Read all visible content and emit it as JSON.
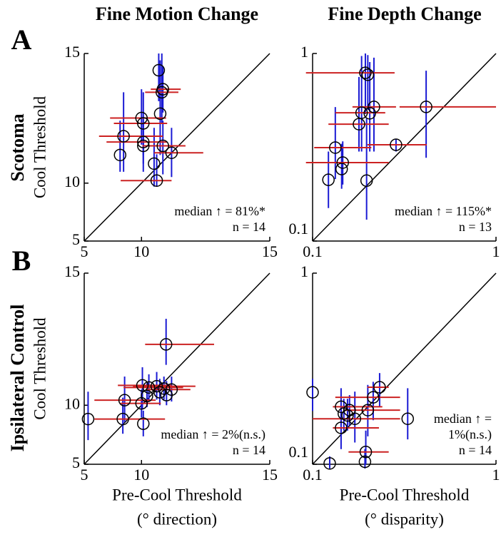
{
  "column_titles": [
    "Fine Motion Change",
    "Fine Depth Change"
  ],
  "row_letters": [
    "A",
    "B"
  ],
  "row_titles": [
    "Scotoma",
    "Ipsilateral Control"
  ],
  "chart_data": [
    {
      "type": "scatter",
      "ylabel": "Cool Threshold",
      "xlim": [
        5,
        15
      ],
      "ylim": [
        5,
        15
      ],
      "xticks": [
        5,
        10,
        15
      ],
      "yticks": [
        5,
        10,
        15
      ],
      "annotations": [
        "median ↑ = 81%*",
        "n = 14"
      ],
      "point_color": "#000000",
      "x_err_color": "#cc2222",
      "y_err_color": "#1a1ad4",
      "unity_color": "#000000",
      "x": [
        10.9,
        11.05,
        11.1,
        10.97,
        10.0,
        10.1,
        8.9,
        10.1,
        10.1,
        11.1,
        8.66,
        11.5,
        10.67,
        10.8
      ],
      "y": [
        14.5,
        13.8,
        13.9,
        13.06,
        12.9,
        12.7,
        12.2,
        11.96,
        11.8,
        11.8,
        11.4,
        11.5,
        11.0,
        10.14
      ],
      "x_low": [
        null,
        10.2,
        10.5,
        null,
        7.9,
        8.2,
        6.9,
        7.6,
        null,
        10.05,
        null,
        10.67,
        null,
        8.7
      ],
      "x_high": [
        null,
        11.8,
        11.9,
        null,
        11.25,
        11.3,
        11.1,
        11.3,
        null,
        12.1,
        null,
        12.8,
        null,
        11.5
      ],
      "y_low": [
        13.5,
        12.7,
        13.1,
        11.4,
        11.85,
        11.4,
        10.6,
        11.0,
        10.6,
        10.47,
        10.6,
        10.33,
        9.8,
        9.8
      ],
      "y_high": [
        15,
        15,
        14.6,
        14.8,
        13.9,
        13.8,
        13.8,
        12.67,
        12.95,
        12.8,
        12.8,
        12.53,
        12.53,
        11.43
      ]
    },
    {
      "type": "scatter",
      "xscale": "log",
      "yscale": "log",
      "xlim": [
        0.1,
        1
      ],
      "ylim": [
        0.1,
        1
      ],
      "xticks": [
        0.1,
        1
      ],
      "yticks": [
        0.1,
        1
      ],
      "annotations": [
        "median ↑ = 115%*",
        "n = 13"
      ],
      "point_color": "#000000",
      "x_err_color": "#cc2222",
      "y_err_color": "#1a1ad4",
      "unity_color": "#000000",
      "x": [
        0.194,
        0.2,
        0.216,
        0.416,
        0.185,
        0.179,
        0.133,
        0.285,
        0.146,
        0.144,
        0.122,
        0.197,
        0.205
      ],
      "y": [
        0.789,
        0.77,
        0.519,
        0.519,
        0.483,
        0.42,
        0.315,
        0.326,
        0.262,
        0.242,
        0.212,
        0.21,
        0.48
      ],
      "x_low": [
        0.092,
        null,
        0.165,
        0.298,
        0.133,
        0.122,
        0.102,
        0.199,
        0.092,
        null,
        null,
        null,
        null
      ],
      "x_high": [
        0.28,
        null,
        0.285,
        1.0,
        0.249,
        0.26,
        0.209,
        0.419,
        0.26,
        null,
        null,
        null,
        null
      ],
      "y_low": [
        0.475,
        0.5,
        0.3,
        0.278,
        0.3,
        0.3,
        0.214,
        0.3,
        0.2,
        0.19,
        0.15,
        0.13,
        0.3
      ],
      "y_high": [
        1,
        0.98,
        0.95,
        0.81,
        0.97,
        0.75,
        0.518,
        0.35,
        0.34,
        0.33,
        0.3,
        0.45,
        0.9
      ]
    },
    {
      "type": "scatter",
      "ylabel": "Cool Threshold",
      "xlabel": [
        "Pre-Cool Threshold",
        "(° direction)"
      ],
      "xlim": [
        5,
        15
      ],
      "ylim": [
        5,
        15
      ],
      "xticks": [
        5,
        10,
        15
      ],
      "yticks": [
        5,
        10,
        15
      ],
      "annotations": [
        "median ↑ = 2%(n.s.)",
        "n = 14"
      ],
      "point_color": "#000000",
      "x_err_color": "#cc2222",
      "y_err_color": "#1a1ad4",
      "unity_color": "#000000",
      "x": [
        11.25,
        10.05,
        10.8,
        10.4,
        11.5,
        11.15,
        10.95,
        11.27,
        10.3,
        10.0,
        8.97,
        5.6,
        8.85,
        10.1
      ],
      "y": [
        12.7,
        11.0,
        10.96,
        10.9,
        10.8,
        10.85,
        10.67,
        10.53,
        10.48,
        10.1,
        10.27,
        9.2,
        9.2,
        8.9
      ],
      "x_low": [
        10.2,
        8.5,
        9.5,
        8.9,
        10.3,
        null,
        null,
        null,
        null,
        8.7,
        6.4,
        null,
        6.4,
        null
      ],
      "x_high": [
        13.2,
        11.5,
        12.5,
        12.0,
        12.3,
        null,
        null,
        null,
        null,
        11.0,
        10.75,
        null,
        11.2,
        null
      ],
      "y_low": [
        11.9,
        9.8,
        10.3,
        10.2,
        10.2,
        10.3,
        10.0,
        10.0,
        9.9,
        9.3,
        9.0,
        7.7,
        8.2,
        8.0
      ],
      "y_high": [
        13.6,
        11.8,
        11.6,
        11.5,
        11.4,
        11.4,
        11.3,
        11.2,
        11.1,
        10.8,
        11.4,
        10.7,
        10.4,
        9.7
      ]
    },
    {
      "type": "scatter",
      "xscale": "log",
      "yscale": "log",
      "xlabel": [
        "Pre-Cool Threshold",
        "(° disparity)"
      ],
      "xlim": [
        0.1,
        1
      ],
      "ylim": [
        0.1,
        1
      ],
      "xticks": [
        0.1,
        1
      ],
      "yticks": [
        0.1,
        1
      ],
      "annotations": [
        "median ↑ =",
        "1%(n.s.)",
        "n = 14"
      ],
      "point_color": "#000000",
      "x_err_color": "#cc2222",
      "y_err_color": "#1a1ad4",
      "unity_color": "#000000",
      "x": [
        0.1,
        0.232,
        0.214,
        0.143,
        0.2,
        0.148,
        0.159,
        0.17,
        0.33,
        0.143,
        0.195,
        0.193,
        0.124,
        0.155
      ],
      "y": [
        0.238,
        0.253,
        0.224,
        0.2,
        0.192,
        0.184,
        0.192,
        0.173,
        0.173,
        0.155,
        0.116,
        0.103,
        0.101,
        0.18
      ],
      "x_low": [
        null,
        0.199,
        0.133,
        0.129,
        0.148,
        null,
        null,
        0.1,
        null,
        0.129,
        0.157,
        null,
        null,
        null
      ],
      "x_high": [
        null,
        0.26,
        0.3,
        0.24,
        0.3,
        null,
        null,
        0.3,
        null,
        0.23,
        0.26,
        null,
        null,
        null
      ],
      "y_low": [
        0.19,
        0.2,
        0.17,
        0.16,
        0.14,
        0.15,
        0.16,
        0.13,
        0.135,
        0.12,
        0.1,
        0.095,
        0.095,
        0.15
      ],
      "y_high": [
        0.28,
        0.3,
        0.27,
        0.25,
        0.26,
        0.22,
        0.23,
        0.24,
        0.25,
        0.2,
        0.15,
        0.12,
        0.11,
        0.22
      ]
    }
  ]
}
